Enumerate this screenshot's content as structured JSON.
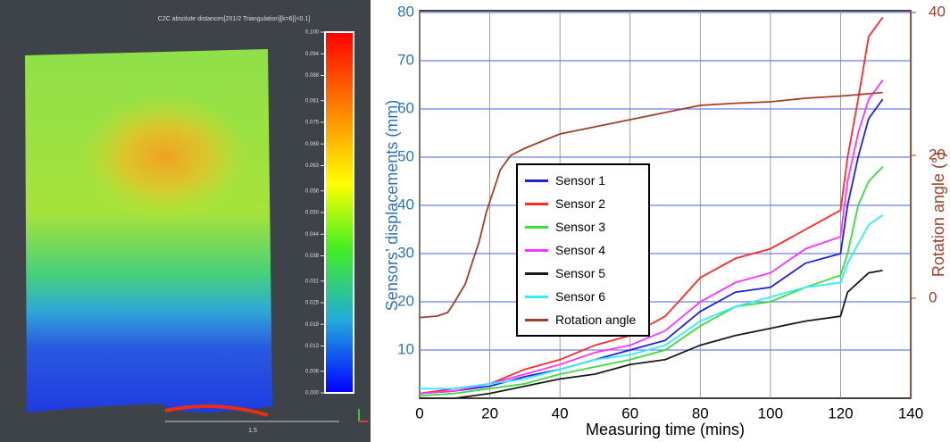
{
  "chart_data": [
    {
      "type": "heatmap",
      "title": "C2C absolute distances[201/2 Triangulation][k=6][<0.1]",
      "ylim": [
        0,
        0.1
      ],
      "yticks": [
        {
          "value": 0.1,
          "label": "0.100"
        },
        0.094,
        0.088,
        0.081,
        0.075,
        0.069,
        0.063,
        0.056,
        {
          "value": 0.05,
          "label": "0.050"
        },
        0.044,
        0.038,
        0.031,
        0.025,
        0.019,
        0.013,
        0.006,
        {
          "value": 0,
          "label": "0.000"
        }
      ],
      "scale_label": "1.5"
    },
    {
      "type": "line",
      "xlabel": "Measuring time (mins)",
      "ylabel": "Sensors’ displacements (mm)",
      "y2label": "Rotation angle (°)",
      "x": [
        0,
        10,
        20,
        30,
        40,
        50,
        60,
        70,
        80,
        90,
        100,
        110,
        120,
        122,
        125,
        128,
        132
      ],
      "xlim": [
        0,
        140
      ],
      "xticks": [
        0,
        20,
        40,
        60,
        80,
        100,
        120,
        140
      ],
      "ylim": [
        0,
        80
      ],
      "yticks": [
        10,
        20,
        30,
        40,
        50,
        60,
        70,
        80
      ],
      "y2lim": [
        -14,
        40
      ],
      "y2ticks": [
        0,
        20,
        40
      ],
      "grid": true,
      "legend": "center",
      "series": [
        {
          "name": "Sensor 1",
          "color": "#2222dd",
          "values": [
            1,
            1.5,
            2.5,
            4.5,
            6,
            8,
            10,
            12,
            18,
            22,
            23,
            28,
            30,
            40,
            50,
            58,
            62
          ]
        },
        {
          "name": "Sensor 2",
          "color": "#ff2a2a",
          "values": [
            1,
            2,
            3,
            6,
            8,
            11,
            13,
            17,
            25,
            29,
            31,
            35,
            39,
            50,
            62,
            75,
            79
          ]
        },
        {
          "name": "Sensor 3",
          "color": "#3ddc3d",
          "values": [
            0.5,
            1,
            2,
            3,
            5,
            6.5,
            8,
            10,
            15,
            19,
            20,
            23,
            25.5,
            30,
            40,
            45,
            48
          ]
        },
        {
          "name": "Sensor 4",
          "color": "#ff33ff",
          "values": [
            1,
            1.5,
            3,
            5,
            7,
            9.5,
            11,
            14,
            20,
            24,
            26,
            31,
            33.5,
            45,
            55,
            62,
            66
          ]
        },
        {
          "name": "Sensor 5",
          "color": "#1a1a1a",
          "values": [
            0,
            0,
            1,
            2.5,
            4,
            5,
            7,
            8,
            11,
            13,
            14.5,
            16,
            17,
            22,
            24,
            26,
            26.5
          ]
        },
        {
          "name": "Sensor 6",
          "color": "#33eeff",
          "values": [
            2,
            2,
            3,
            4,
            6,
            8,
            9,
            11,
            16,
            19,
            21,
            23,
            24,
            28,
            32,
            36,
            38
          ]
        },
        {
          "name": "Rotation angle",
          "color": "#a0402a",
          "axis": "y2",
          "x": [
            0,
            5,
            8,
            10,
            13,
            15,
            17,
            19,
            21,
            23,
            26,
            30,
            35,
            40,
            45,
            50,
            55,
            60,
            65,
            70,
            75,
            80,
            90,
            100,
            110,
            120,
            125,
            132
          ],
          "values": [
            -2.7,
            -2.5,
            -2,
            -0.5,
            2,
            5,
            8,
            12,
            15,
            18,
            20,
            21,
            22,
            23,
            23.5,
            24,
            24.5,
            25,
            25.5,
            26,
            26.5,
            27,
            27.3,
            27.5,
            28,
            28.3,
            28.5,
            28.8
          ]
        }
      ]
    }
  ]
}
